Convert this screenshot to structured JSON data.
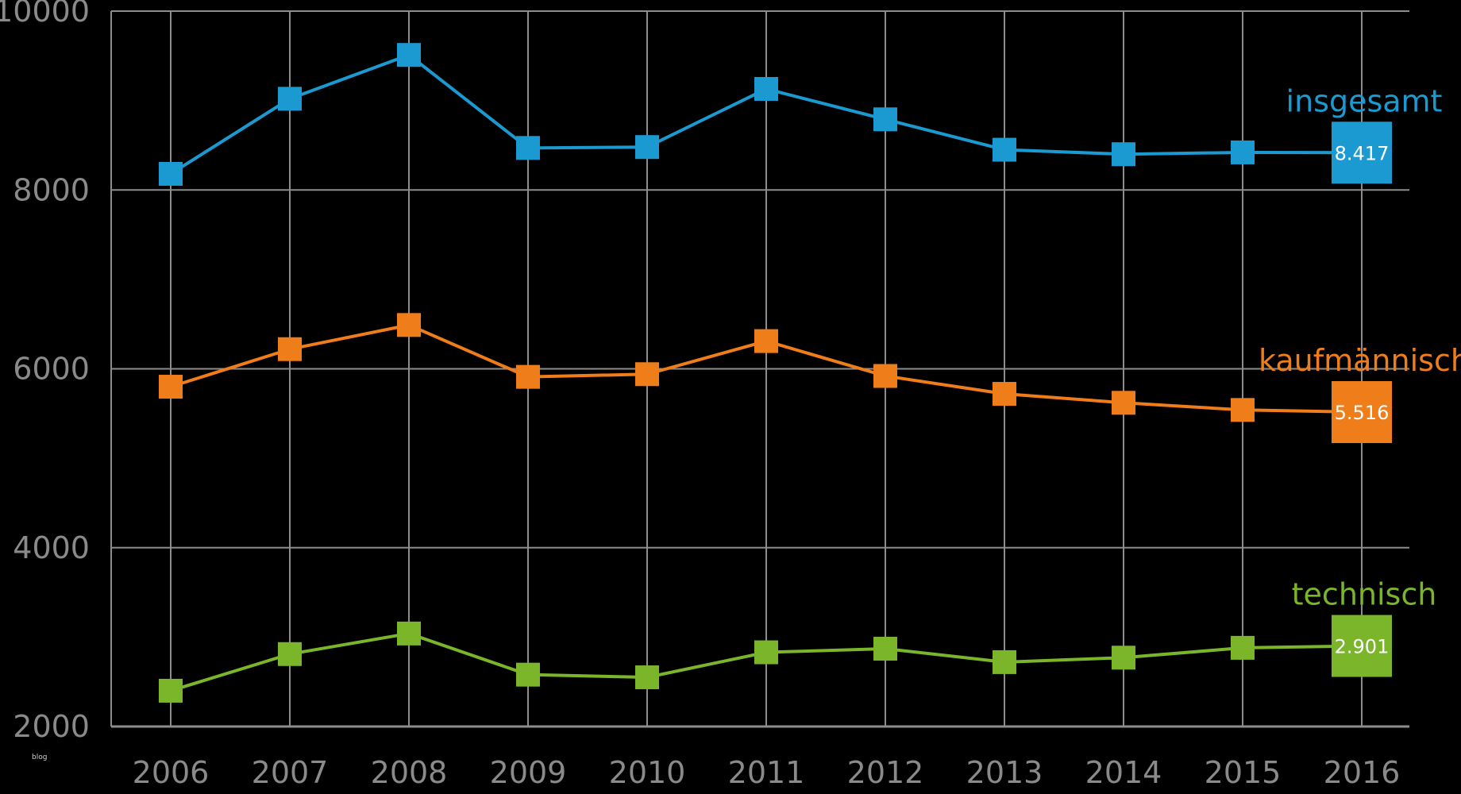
{
  "chart_data": {
    "type": "line",
    "title": "",
    "xlabel": "",
    "ylabel": "",
    "x": [
      "2006",
      "2007",
      "2008",
      "2009",
      "2010",
      "2011",
      "2012",
      "2013",
      "2014",
      "2015",
      "2016"
    ],
    "ylim": [
      2000,
      10000
    ],
    "yticks": [
      2000,
      4000,
      6000,
      8000,
      10000
    ],
    "grid": true,
    "legend": "inline-right",
    "series": [
      {
        "name": "insgesamt",
        "color": "#1a9ad0",
        "values": [
          8180,
          9020,
          9510,
          8470,
          8480,
          9130,
          8790,
          8450,
          8400,
          8420,
          8417
        ],
        "end_label": "8.417"
      },
      {
        "name": "kaufmännisch",
        "color": "#ee7d1a",
        "values": [
          5800,
          6220,
          6490,
          5910,
          5940,
          6310,
          5920,
          5720,
          5620,
          5540,
          5516
        ],
        "end_label": "5.516"
      },
      {
        "name": "technisch",
        "color": "#7ab52a",
        "values": [
          2400,
          2810,
          3040,
          2580,
          2550,
          2830,
          2870,
          2720,
          2770,
          2880,
          2901
        ],
        "end_label": "2.901"
      }
    ]
  },
  "watermark": "blog"
}
